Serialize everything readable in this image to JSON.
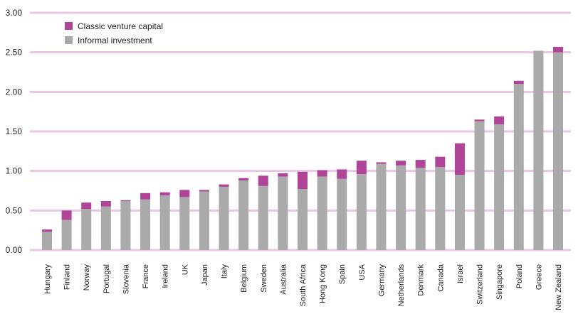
{
  "chart_data": {
    "type": "bar",
    "stacked": true,
    "title": "",
    "xlabel": "",
    "ylabel": "",
    "ylim": [
      0,
      3.0
    ],
    "yticks": [
      "0.00",
      "0.50",
      "1.00",
      "1.50",
      "2.00",
      "2.50",
      "3.00"
    ],
    "grid": true,
    "legend_position": "top-left",
    "categories": [
      "Hungary",
      "Finland",
      "Norway",
      "Portugal",
      "Slovenia",
      "France",
      "Ireland",
      "UK",
      "Japan",
      "Italy",
      "Belgium",
      "Sweden",
      "Australia",
      "South Africa",
      "Hong Kong",
      "Spain",
      "USA",
      "Germany",
      "Netherlands",
      "Denmark",
      "Canada",
      "Israel",
      "Switzerland",
      "Singapore",
      "Poland",
      "Greece",
      "New Zealand"
    ],
    "series": [
      {
        "name": "Informal investment",
        "color": "#aaaaaa",
        "values": [
          0.23,
          0.38,
          0.52,
          0.55,
          0.62,
          0.64,
          0.69,
          0.67,
          0.74,
          0.8,
          0.88,
          0.81,
          0.93,
          0.77,
          0.93,
          0.9,
          0.96,
          1.09,
          1.07,
          1.04,
          1.05,
          0.95,
          1.63,
          1.59,
          2.1,
          2.52,
          2.5
        ]
      },
      {
        "name": "Classic venture capital",
        "color": "#b04499",
        "values": [
          0.03,
          0.12,
          0.08,
          0.07,
          0.01,
          0.08,
          0.04,
          0.09,
          0.02,
          0.03,
          0.03,
          0.13,
          0.04,
          0.22,
          0.08,
          0.12,
          0.17,
          0.02,
          0.06,
          0.1,
          0.13,
          0.4,
          0.02,
          0.1,
          0.04,
          0.0,
          0.07
        ]
      }
    ]
  },
  "colors": {
    "gridline": "#e8c7e2",
    "axis_text": "#222222"
  }
}
